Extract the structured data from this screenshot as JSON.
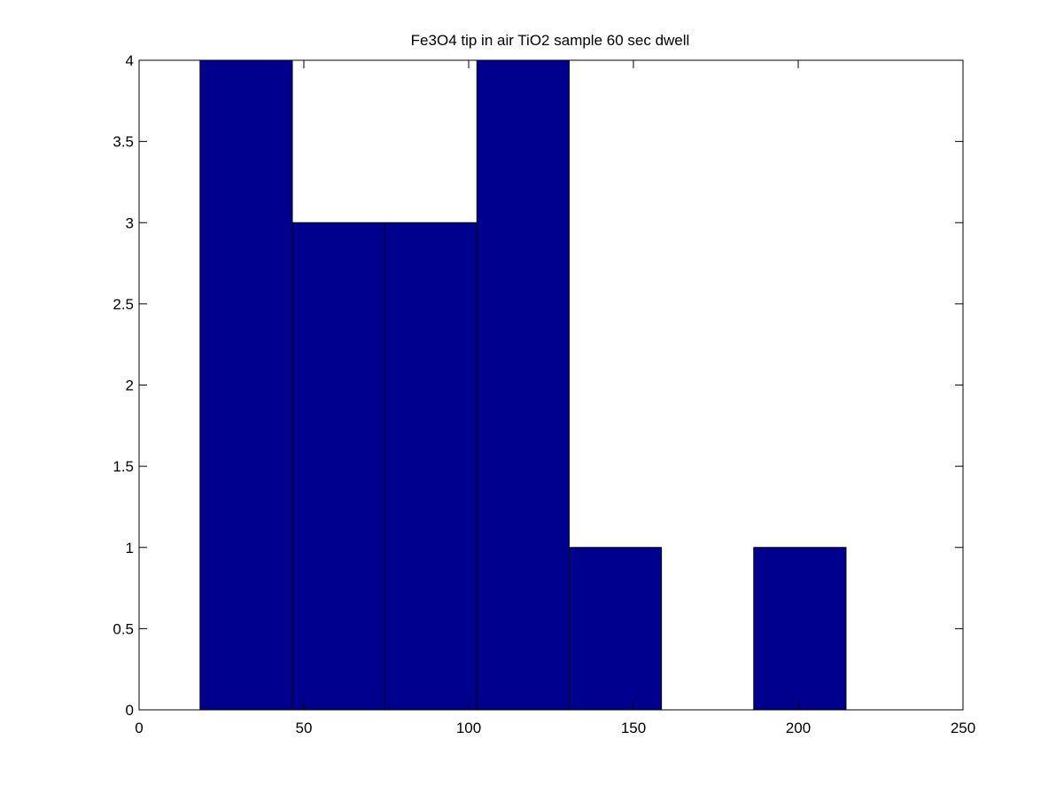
{
  "chart_data": {
    "type": "bar",
    "title": "Fe3O4 tip in air TiO2 sample 60 sec dwell",
    "xlabel": "",
    "ylabel": "",
    "bins": [
      {
        "x0": 18.5,
        "x1": 46.5,
        "count": 4
      },
      {
        "x0": 46.5,
        "x1": 74.5,
        "count": 3
      },
      {
        "x0": 74.5,
        "x1": 102.5,
        "count": 3
      },
      {
        "x0": 102.5,
        "x1": 130.5,
        "count": 4
      },
      {
        "x0": 130.5,
        "x1": 158.5,
        "count": 1
      },
      {
        "x0": 158.5,
        "x1": 186.5,
        "count": 0
      },
      {
        "x0": 186.5,
        "x1": 214.5,
        "count": 1
      }
    ],
    "xlim": [
      0,
      250
    ],
    "ylim": [
      0,
      4
    ],
    "xticks": [
      0,
      50,
      100,
      150,
      200,
      250
    ],
    "xtick_labels": [
      "0",
      "50",
      "100",
      "150",
      "200",
      "250"
    ],
    "yticks": [
      0,
      0.5,
      1,
      1.5,
      2,
      2.5,
      3,
      3.5,
      4
    ],
    "ytick_labels": [
      "0",
      "0.5",
      "1",
      "1.5",
      "2",
      "2.5",
      "3",
      "3.5",
      "4"
    ],
    "grid": false,
    "bar_color": "#00008F",
    "edge_color": "#000000"
  }
}
